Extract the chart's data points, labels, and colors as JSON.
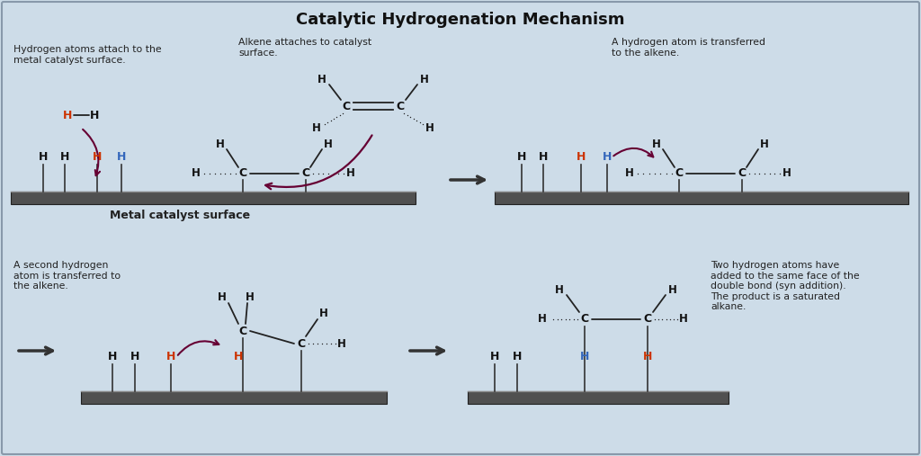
{
  "title": "Catalytic Hydrogenation Mechanism",
  "bg_color": "#cddce8",
  "border_color": "#8899aa",
  "title_color": "#111111",
  "surface_color": "#505050",
  "H_red": "#cc3300",
  "H_blue": "#3366bb",
  "H_black": "#111111",
  "C_color": "#111111",
  "arrow_color": "#660033",
  "text_color": "#222222",
  "label1": "Hydrogen atoms attach to the\nmetal catalyst surface.",
  "label2": "Alkene attaches to catalyst\nsurface.",
  "label3": "A hydrogen atom is transferred\nto the alkene.",
  "label4": "A second hydrogen\natom is transferred to\nthe alkene.",
  "label5": "Two hydrogen atoms have\nadded to the same face of the\ndouble bond (syn addition).\nThe product is a saturated\nalkane.",
  "surface_label": "Metal catalyst surface"
}
